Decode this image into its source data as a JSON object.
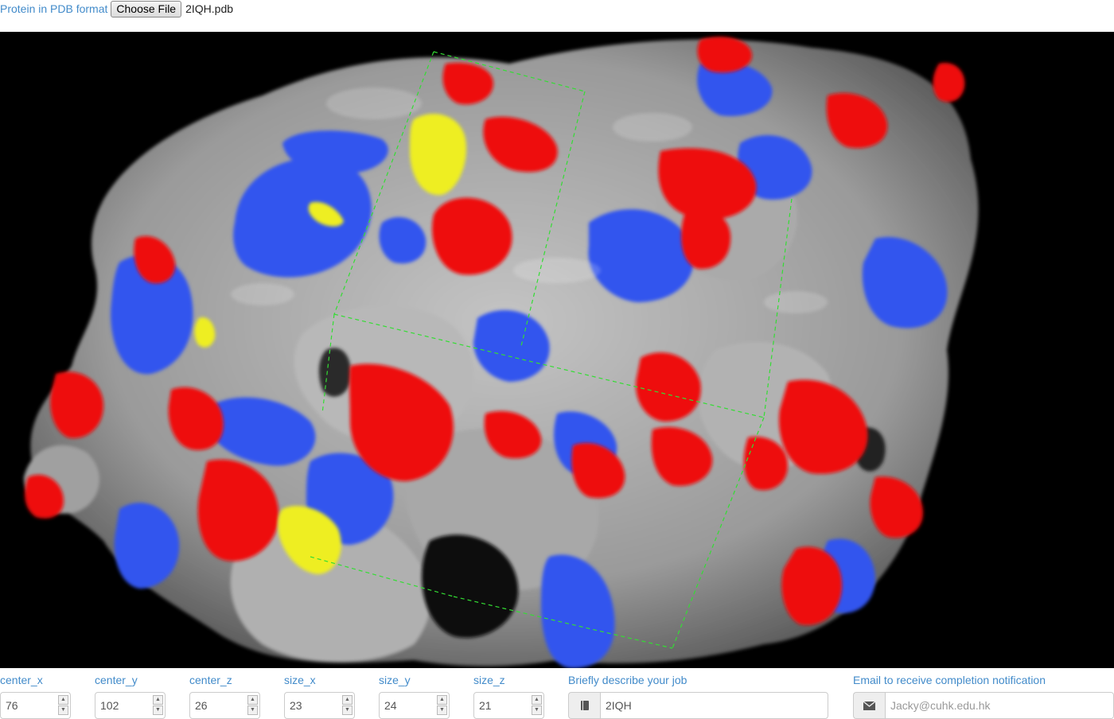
{
  "file_upload": {
    "label": "Protein in PDB format",
    "button_label": "Choose File",
    "file_name": "2IQH.pdb"
  },
  "viewer": {
    "description_icon": "protein-surface-3d-view",
    "colors": {
      "background": "#000000",
      "surface": "#9e9e9e",
      "positive": "#3355ee",
      "negative": "#ee1111",
      "sulfur": "#eeee22",
      "box": "#22dd22"
    }
  },
  "params": {
    "center_x": {
      "label": "center_x",
      "value": "76"
    },
    "center_y": {
      "label": "center_y",
      "value": "102"
    },
    "center_z": {
      "label": "center_z",
      "value": "26"
    },
    "size_x": {
      "label": "size_x",
      "value": "23"
    },
    "size_y": {
      "label": "size_y",
      "value": "24"
    },
    "size_z": {
      "label": "size_z",
      "value": "21"
    }
  },
  "description": {
    "label": "Briefly describe your job",
    "value": "2IQH",
    "icon": "book-icon"
  },
  "email": {
    "label": "Email to receive completion notification",
    "placeholder": "Jacky@cuhk.edu.hk",
    "icon": "envelope-icon"
  }
}
